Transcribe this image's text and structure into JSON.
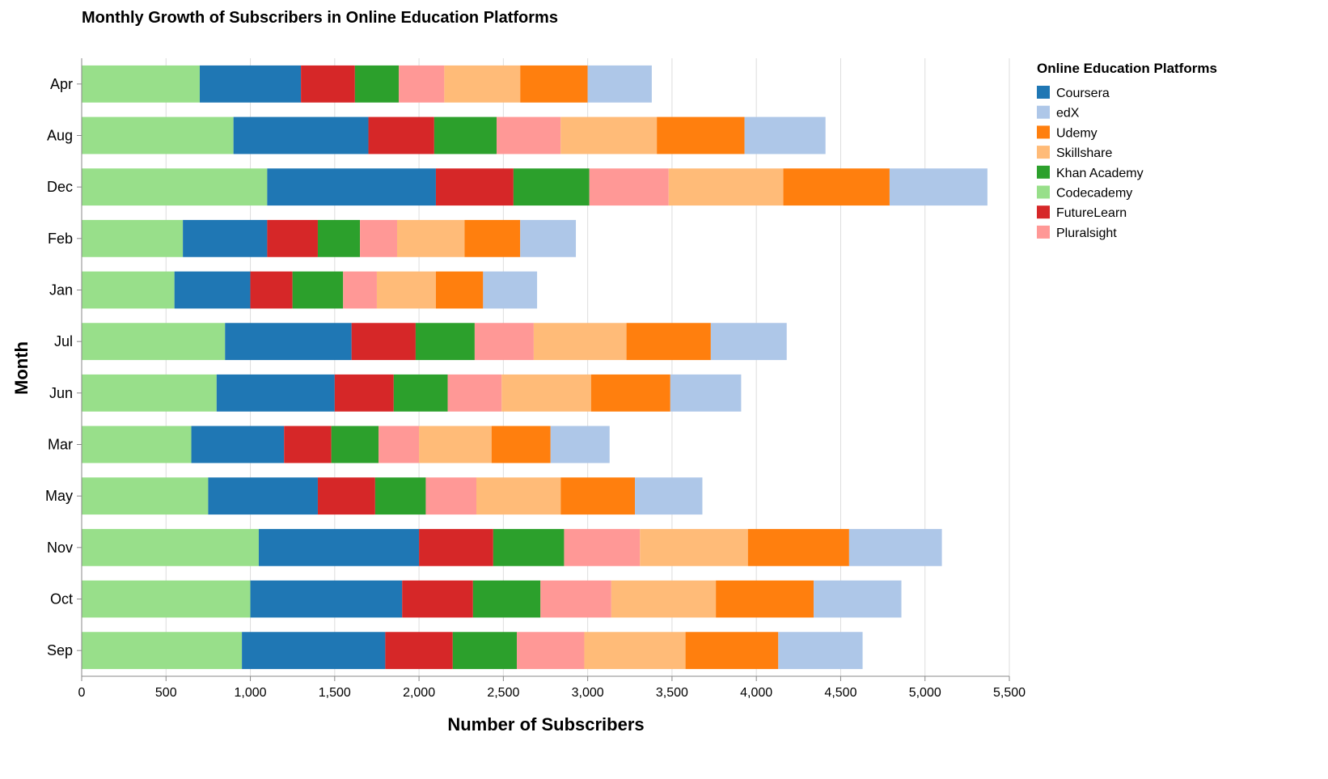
{
  "chart_data": {
    "type": "bar",
    "orientation": "horizontal",
    "stacked": true,
    "title": "Monthly Growth of Subscribers in Online Education Platforms",
    "xlabel": "Number of Subscribers",
    "ylabel": "Month",
    "xlim": [
      0,
      5500
    ],
    "x_ticks": [
      "0",
      "500",
      "1,000",
      "1,500",
      "2,000",
      "2,500",
      "3,000",
      "3,500",
      "4,000",
      "4,500",
      "5,000",
      "5,500"
    ],
    "grid": true,
    "legend": {
      "title": "Online Education Platforms",
      "placement": "right",
      "entries": [
        "Coursera",
        "edX",
        "Udemy",
        "Skillshare",
        "Khan Academy",
        "Codecademy",
        "FutureLearn",
        "Pluralsight"
      ]
    },
    "categories": [
      "Apr",
      "Aug",
      "Dec",
      "Feb",
      "Jan",
      "Jul",
      "Jun",
      "Mar",
      "May",
      "Nov",
      "Oct",
      "Sep"
    ],
    "stack_order": [
      "Codecademy",
      "Coursera",
      "FutureLearn",
      "Khan Academy",
      "Pluralsight",
      "Skillshare",
      "Udemy",
      "edX"
    ],
    "colors": {
      "Coursera": "#1f77b4",
      "edX": "#aec7e8",
      "Udemy": "#ff7f0e",
      "Skillshare": "#ffbb78",
      "Khan Academy": "#2ca02c",
      "Codecademy": "#98df8a",
      "FutureLearn": "#d62728",
      "Pluralsight": "#ff9896"
    },
    "series": [
      {
        "name": "Codecademy",
        "values": [
          700,
          900,
          1100,
          600,
          550,
          850,
          800,
          650,
          750,
          1050,
          1000,
          950
        ]
      },
      {
        "name": "Coursera",
        "values": [
          600,
          800,
          1000,
          500,
          450,
          750,
          700,
          550,
          650,
          950,
          900,
          850
        ]
      },
      {
        "name": "FutureLearn",
        "values": [
          320,
          390,
          460,
          300,
          250,
          380,
          350,
          280,
          340,
          440,
          420,
          400
        ]
      },
      {
        "name": "Khan Academy",
        "values": [
          260,
          370,
          450,
          250,
          300,
          350,
          320,
          280,
          300,
          420,
          400,
          380
        ]
      },
      {
        "name": "Pluralsight",
        "values": [
          270,
          380,
          470,
          220,
          200,
          350,
          320,
          240,
          300,
          450,
          420,
          400
        ]
      },
      {
        "name": "Skillshare",
        "values": [
          450,
          570,
          680,
          400,
          350,
          550,
          530,
          430,
          500,
          640,
          620,
          600
        ]
      },
      {
        "name": "Udemy",
        "values": [
          400,
          520,
          630,
          330,
          280,
          500,
          470,
          350,
          440,
          600,
          580,
          550
        ]
      },
      {
        "name": "edX",
        "values": [
          380,
          480,
          580,
          330,
          320,
          450,
          420,
          350,
          400,
          550,
          520,
          500
        ]
      }
    ]
  }
}
